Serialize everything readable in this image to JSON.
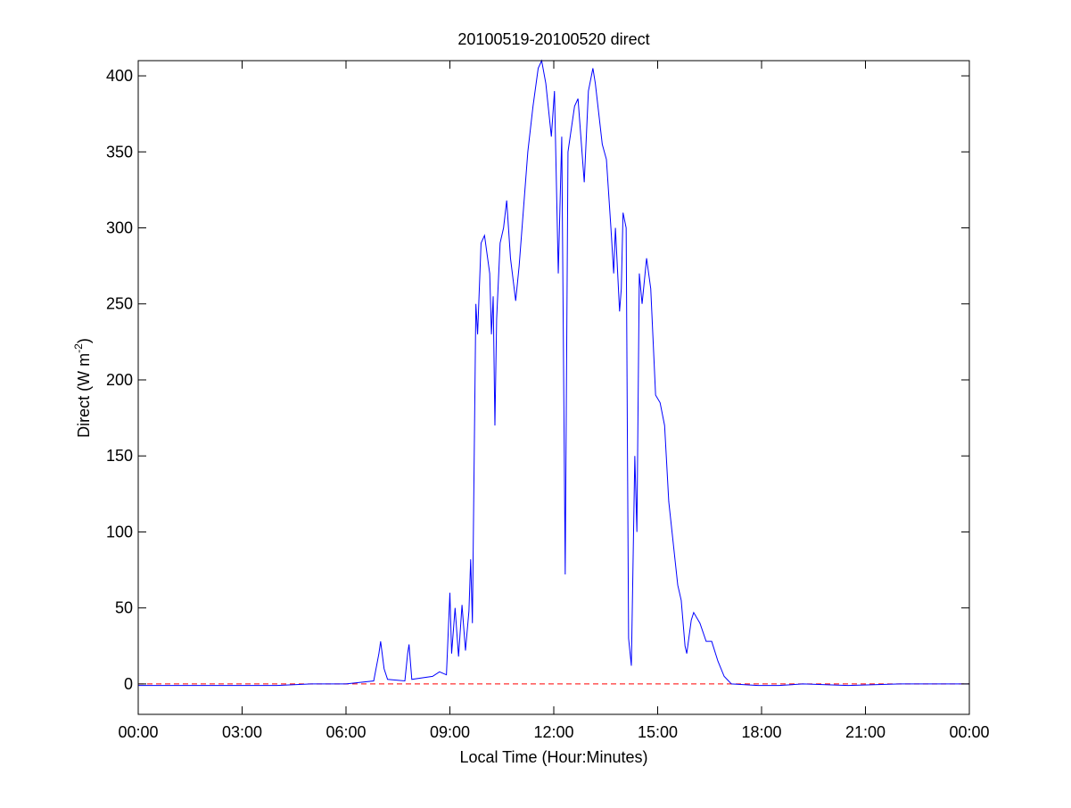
{
  "chart_data": {
    "type": "line",
    "title": "20100519-20100520 direct",
    "xlabel": "Local Time (Hour:Minutes)",
    "ylabel_parts": [
      "Direct (W m",
      "-2",
      ")"
    ],
    "xlim": [
      0,
      24
    ],
    "xticks": [
      {
        "value": 0,
        "label": "00:00"
      },
      {
        "value": 3,
        "label": "03:00"
      },
      {
        "value": 6,
        "label": "06:00"
      },
      {
        "value": 9,
        "label": "09:00"
      },
      {
        "value": 12,
        "label": "12:00"
      },
      {
        "value": 15,
        "label": "15:00"
      },
      {
        "value": 18,
        "label": "18:00"
      },
      {
        "value": 21,
        "label": "21:00"
      },
      {
        "value": 24,
        "label": "00:00"
      }
    ],
    "ylim": [
      -20,
      410
    ],
    "yticks": [
      0,
      50,
      100,
      150,
      200,
      250,
      300,
      350,
      400
    ],
    "reference_line": {
      "value": 0,
      "color": "#ff0000",
      "style": "dashed"
    },
    "x": [
      0,
      1,
      2,
      3,
      4,
      5,
      6,
      6.8,
      6.95,
      7.0,
      7.1,
      7.2,
      7.7,
      7.78,
      7.82,
      7.9,
      8.5,
      8.7,
      8.9,
      9.0,
      9.05,
      9.15,
      9.25,
      9.35,
      9.45,
      9.55,
      9.6,
      9.65,
      9.75,
      9.8,
      9.9,
      10.0,
      10.15,
      10.2,
      10.25,
      10.3,
      10.35,
      10.45,
      10.55,
      10.64,
      10.75,
      10.9,
      11.0,
      11.25,
      11.4,
      11.55,
      11.65,
      11.77,
      11.93,
      12.02,
      12.13,
      12.23,
      12.33,
      12.41,
      12.6,
      12.7,
      12.88,
      13.0,
      13.13,
      13.2,
      13.4,
      13.52,
      13.65,
      13.73,
      13.78,
      13.9,
      13.95,
      14.0,
      14.09,
      14.16,
      14.24,
      14.34,
      14.4,
      14.47,
      14.55,
      14.68,
      14.8,
      14.94,
      15.07,
      15.2,
      15.32,
      15.58,
      15.68,
      15.79,
      15.84,
      15.97,
      16.04,
      16.22,
      16.4,
      16.56,
      16.74,
      16.92,
      17.13,
      17.9,
      18.5,
      19.2,
      20.5,
      22,
      24
    ],
    "series": [
      {
        "name": "direct",
        "color": "#0000ff",
        "values": [
          -1,
          -1,
          -1,
          -1,
          -1,
          0,
          0,
          2,
          20,
          28,
          10,
          3,
          2,
          20,
          26,
          3,
          5,
          8,
          6,
          60,
          20,
          50,
          18,
          52,
          22,
          48,
          82,
          40,
          250,
          230,
          290,
          295,
          270,
          230,
          255,
          170,
          240,
          290,
          300,
          318,
          280,
          252,
          275,
          350,
          380,
          405,
          410,
          395,
          360,
          390,
          270,
          360,
          72,
          350,
          380,
          385,
          330,
          390,
          405,
          395,
          355,
          345,
          300,
          270,
          300,
          245,
          260,
          310,
          300,
          30,
          12,
          150,
          100,
          270,
          250,
          280,
          260,
          190,
          185,
          170,
          120,
          65,
          55,
          25,
          20,
          42,
          47,
          40,
          28,
          28,
          15,
          5,
          0,
          -1,
          -1,
          0,
          -1,
          0,
          0
        ]
      }
    ]
  }
}
